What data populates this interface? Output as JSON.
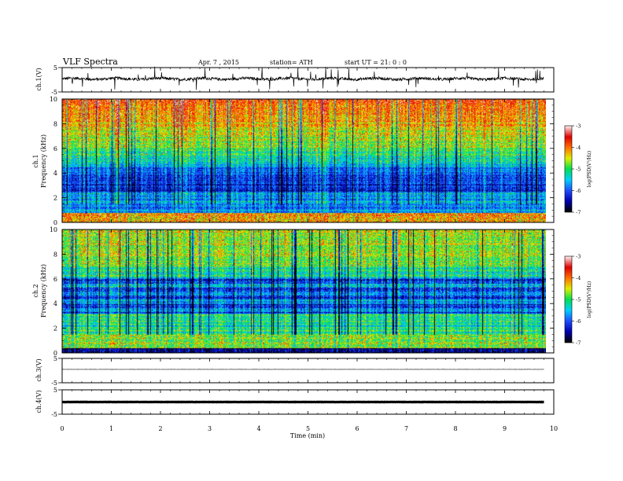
{
  "header": {
    "title": "VLF Spectra",
    "date": "Apr. 7 , 2015",
    "station": "station= ATH",
    "start": "start UT = 21: 0 : 0"
  },
  "chart_data": [
    {
      "type": "line",
      "name": "ch1-waveform",
      "ylabel": "ch.1(V)",
      "ylim": [
        -5,
        5
      ],
      "yticks": [
        "5",
        "-5"
      ],
      "xlim": [
        0,
        10
      ],
      "data_extent_min": 9.8,
      "baseline": 0.4,
      "amplitude": 1.2
    },
    {
      "type": "heatmap",
      "name": "ch1-spectrogram",
      "ylabel": "Frequency (kHz)",
      "channel_label": "ch.1",
      "ylim": [
        0,
        10
      ],
      "yticks": [
        "0",
        "2",
        "4",
        "6",
        "8",
        "10"
      ],
      "xlim": [
        0,
        10
      ],
      "colorbar": {
        "label": "log(PSD(V²/Hz)",
        "range": [
          -7,
          -3
        ],
        "ticks": [
          "-3",
          "-4",
          "-5",
          "-6",
          "-7"
        ]
      }
    },
    {
      "type": "heatmap",
      "name": "ch2-spectrogram",
      "ylabel": "Frequency (kHz)",
      "channel_label": "ch.2",
      "ylim": [
        0,
        10
      ],
      "yticks": [
        "0",
        "2",
        "4",
        "6",
        "8",
        "10"
      ],
      "xlim": [
        0,
        10
      ],
      "colorbar": {
        "label": "log(PSD(V²/Hz)",
        "range": [
          -7,
          -3
        ],
        "ticks": [
          "-3",
          "-4",
          "-5",
          "-6",
          "-7"
        ]
      }
    },
    {
      "type": "line",
      "name": "ch3-waveform",
      "ylabel": "ch.3(V)",
      "ylim": [
        -5,
        5
      ],
      "yticks": [
        "5",
        "-5"
      ],
      "xlim": [
        0,
        10
      ],
      "baseline": 0.5
    },
    {
      "type": "line",
      "name": "ch4-waveform",
      "ylabel": "ch.4(V)",
      "ylim": [
        -5,
        5
      ],
      "yticks": [
        "5",
        "-5"
      ],
      "xlim": [
        0,
        10
      ],
      "baseline": 0.0
    }
  ],
  "xaxis": {
    "label": "Time (min)",
    "ticks": [
      "0",
      "1",
      "2",
      "3",
      "4",
      "5",
      "6",
      "7",
      "8",
      "9",
      "10"
    ]
  },
  "colors": {
    "colormap": [
      "#000000",
      "#0000b0",
      "#1e50ff",
      "#00d0ff",
      "#00e050",
      "#e0f000",
      "#ff7000",
      "#e00000",
      "#ffe8e8"
    ]
  }
}
